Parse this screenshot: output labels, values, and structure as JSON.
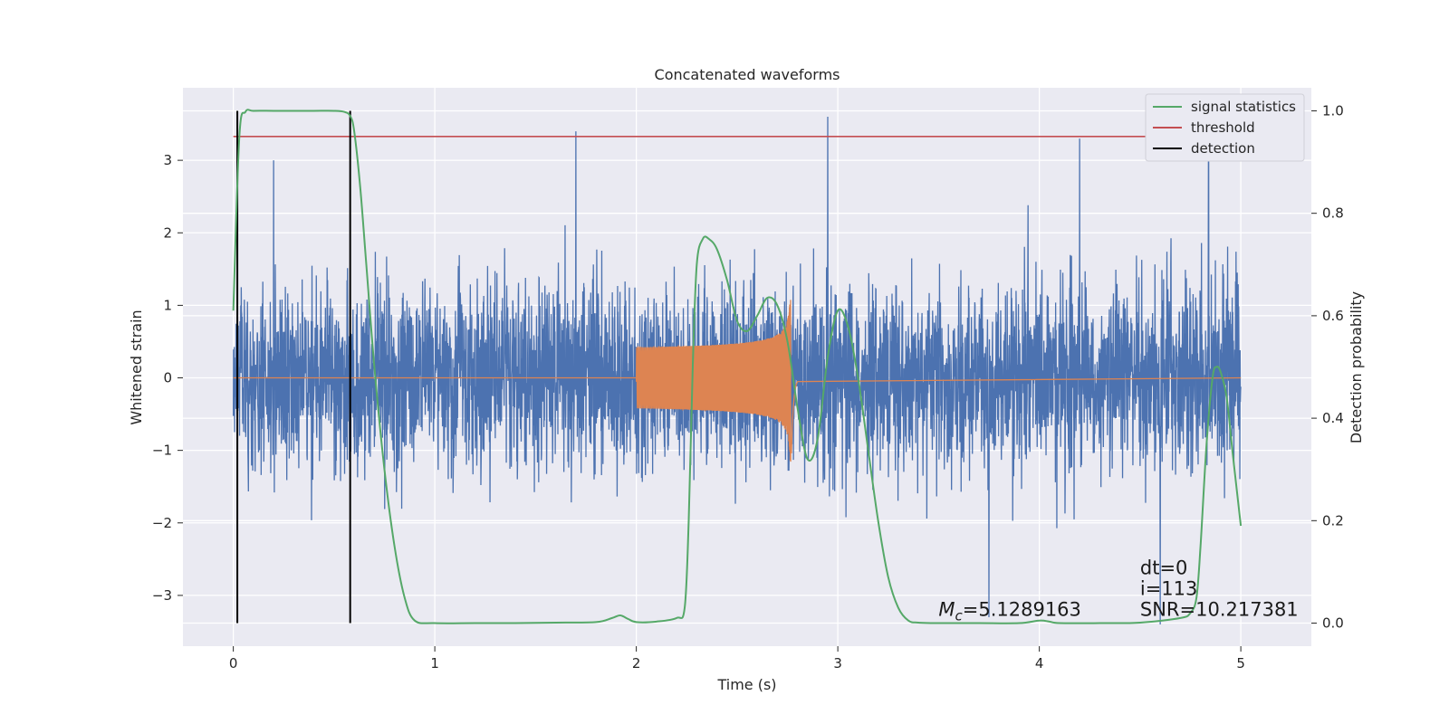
{
  "chart_data": {
    "type": "line",
    "title": "Concatenated waveforms",
    "xlabel": "Time (s)",
    "ylabel": "Whitened strain",
    "y2label": "Detection probability",
    "xlim": [
      -0.25,
      5.35
    ],
    "ylim": [
      -3.7,
      4.0
    ],
    "y2lim": [
      -0.045,
      1.045
    ],
    "xticks": [
      0,
      1,
      2,
      3,
      4,
      5
    ],
    "xtick_labels": [
      "0",
      "1",
      "2",
      "3",
      "4",
      "5"
    ],
    "yticks": [
      -3,
      -2,
      -1,
      0,
      1,
      2,
      3
    ],
    "ytick_labels": [
      "−3",
      "−2",
      "−1",
      "0",
      "1",
      "2",
      "3"
    ],
    "y2ticks": [
      0.0,
      0.2,
      0.4,
      0.6,
      0.8,
      1.0
    ],
    "y2tick_labels": [
      "0.0",
      "0.2",
      "0.4",
      "0.6",
      "0.8",
      "1.0"
    ],
    "grid": true,
    "legend_position": "top-right",
    "legend": [
      "signal statistics",
      "threshold",
      "detection"
    ],
    "colors": {
      "strain": "#4c72b0",
      "template": "#dd8452",
      "signal_statistics": "#55a868",
      "threshold": "#c44e52",
      "detection": "#000000",
      "background": "#eaeaf2",
      "grid": "#ffffff"
    },
    "series": [
      {
        "name": "",
        "axis": "left",
        "kind": "noise",
        "x_range": [
          0,
          5
        ],
        "std": 0.9,
        "peaks": [
          [
            1.7,
            3.4
          ],
          [
            2.95,
            3.6
          ],
          [
            4.2,
            3.3
          ],
          [
            0.2,
            3.0
          ],
          [
            4.84,
            3.1
          ],
          [
            3.75,
            -3.3
          ],
          [
            4.6,
            -3.4
          ]
        ]
      },
      {
        "name": "",
        "axis": "left",
        "kind": "chirp",
        "x_range": [
          2.0,
          2.8
        ],
        "peak_time": 2.77,
        "peak_amplitude": 1.3
      },
      {
        "name": "signal statistics",
        "axis": "right",
        "x": [
          0,
          0.03,
          0.06,
          0.1,
          0.2,
          0.3,
          0.4,
          0.5,
          0.55,
          0.58,
          0.6,
          0.63,
          0.66,
          0.7,
          0.75,
          0.8,
          0.85,
          0.9,
          1.0,
          1.2,
          1.4,
          1.6,
          1.8,
          1.88,
          1.92,
          1.96,
          2.0,
          2.1,
          2.2,
          2.24,
          2.26,
          2.28,
          2.3,
          2.33,
          2.36,
          2.4,
          2.45,
          2.5,
          2.55,
          2.6,
          2.65,
          2.7,
          2.75,
          2.8,
          2.85,
          2.9,
          2.95,
          3.0,
          3.05,
          3.1,
          3.15,
          3.2,
          3.25,
          3.3,
          3.35,
          3.4,
          3.5,
          3.7,
          3.9,
          4.0,
          4.05,
          4.1,
          4.3,
          4.5,
          4.7,
          4.75,
          4.78,
          4.8,
          4.83,
          4.86,
          4.88,
          4.9,
          4.93,
          4.96,
          5.0
        ],
        "y": [
          0.61,
          0.95,
          0.998,
          1.0,
          1.0,
          1.0,
          1.0,
          1.0,
          0.998,
          0.99,
          0.96,
          0.85,
          0.7,
          0.5,
          0.3,
          0.15,
          0.05,
          0.005,
          0.0,
          0.0,
          0.0,
          0.001,
          0.002,
          0.01,
          0.015,
          0.008,
          0.002,
          0.003,
          0.01,
          0.03,
          0.2,
          0.5,
          0.7,
          0.75,
          0.75,
          0.73,
          0.67,
          0.59,
          0.57,
          0.6,
          0.635,
          0.62,
          0.55,
          0.42,
          0.32,
          0.36,
          0.52,
          0.61,
          0.58,
          0.48,
          0.34,
          0.2,
          0.09,
          0.03,
          0.005,
          0.001,
          0.0,
          0.0,
          0.0,
          0.005,
          0.003,
          0.0,
          0.0,
          0.001,
          0.01,
          0.02,
          0.05,
          0.15,
          0.35,
          0.48,
          0.5,
          0.49,
          0.44,
          0.33,
          0.19
        ]
      },
      {
        "name": "threshold",
        "axis": "right",
        "x": [
          0,
          5.1
        ],
        "y": [
          0.95,
          0.95
        ]
      },
      {
        "name": "detection",
        "axis": "right",
        "vlines": [
          0.02,
          0.58
        ],
        "y_range": [
          0.0,
          1.0
        ]
      }
    ],
    "annotations": [
      {
        "text_parts": [
          "M",
          "c",
          "=5.1289163"
        ],
        "x": 3.5,
        "y": 0.0
      },
      {
        "lines": [
          "dt=0",
          "i=113",
          "SNR=10.217381"
        ],
        "x": 4.5,
        "y": 0.0
      }
    ]
  }
}
